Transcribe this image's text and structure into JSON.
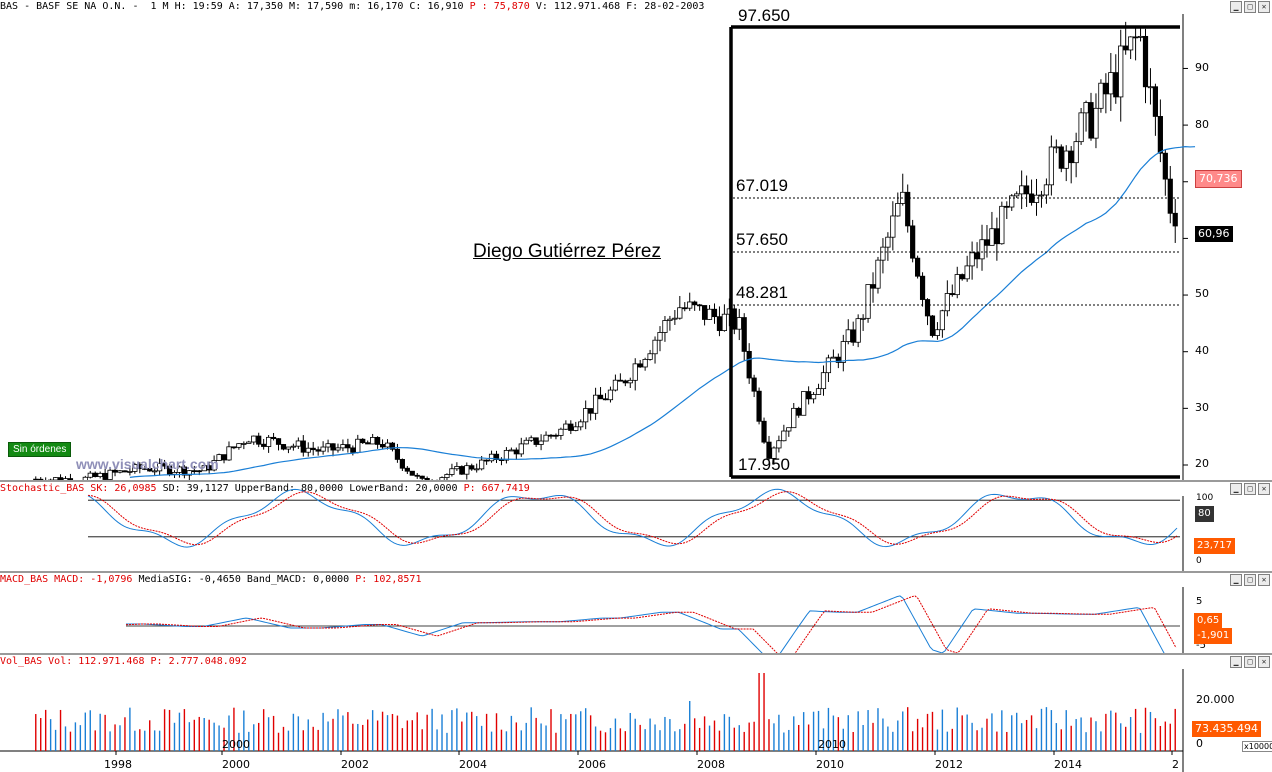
{
  "main": {
    "header": {
      "prefix": "BAS - BASF SE NA O.N. -  1 M H: 19:59 A: 17,350 M: 17,590 m: 16,170 C: 16,910 ",
      "p_label": "P : 75,870",
      "suffix": " V: 112.971.468 F: 28-02-2003"
    },
    "author": "Diego Gutiérrez Pérez",
    "watermark": "www.visualchart.com",
    "no_orders": "Sin órdenes",
    "fibo_levels": [
      {
        "label": "67.019",
        "value": 67.019
      },
      {
        "label": "57.650",
        "value": 57.65
      },
      {
        "label": "48.281",
        "value": 48.281
      }
    ],
    "box_top_label": "97.650",
    "box_bottom_label": "17.950",
    "badge_ma": "70,736",
    "badge_last": "60,96",
    "yticks": [
      "20",
      "30",
      "40",
      "50",
      "60",
      "70",
      "80",
      "90"
    ]
  },
  "stoch": {
    "name": "Stochastic_BAS SK: 26,0985 ",
    "sd": "SD: 39,1127 UpperBand: 80,0000 LowerBand: 20,0000 ",
    "p": "P: 667,7419",
    "badge_upper": "80",
    "badge_val": "23,717",
    "yticks": [
      "100",
      "0"
    ]
  },
  "macd": {
    "name": "MACD_BAS MACD: -1,0796 ",
    "rest": "MediaSIG: -0,4650 Band_MACD: 0,0000 ",
    "p": "P: 102,8571",
    "badge_sig": "0,65",
    "badge_val": "-1,901",
    "yticks": [
      "5",
      "-5"
    ]
  },
  "volume": {
    "name": "Vol_BAS Vol: 112.971.468 ",
    "p": "P: 2.777.048.092",
    "badge_val": "73.435.494",
    "multiplier": "x10000",
    "yticks": [
      "20.000",
      "0"
    ],
    "inner_years": [
      "2000",
      "2010"
    ]
  },
  "x_axis": {
    "years": [
      "1998",
      "2000",
      "2002",
      "2004",
      "2006",
      "2008",
      "2010",
      "2012",
      "2014",
      "2"
    ]
  },
  "colors": {
    "up": "#ffffff",
    "down": "#000000",
    "ma": "#1a7fd6",
    "red": "#e00000",
    "blue": "#1a7fd6",
    "badge_red": "#ff5a00"
  },
  "chart_data": {
    "type": "candlestick",
    "title": "BAS - BASF SE NA O.N.",
    "period": "1 M",
    "y_range": [
      17,
      98
    ],
    "x_range": [
      "1997-01",
      "2016-02"
    ],
    "fib_retracement": {
      "high": 97.65,
      "low": 17.95,
      "levels": [
        67.019,
        57.65,
        48.281
      ]
    },
    "approx_close_path": [
      {
        "date": "1997-06",
        "close": 17.5
      },
      {
        "date": "1998-06",
        "close": 19.5
      },
      {
        "date": "1999-06",
        "close": 19
      },
      {
        "date": "2000-03",
        "close": 25
      },
      {
        "date": "2001-06",
        "close": 22.5
      },
      {
        "date": "2002-06",
        "close": 24
      },
      {
        "date": "2003-02",
        "close": 16.9
      },
      {
        "date": "2004-03",
        "close": 20.5
      },
      {
        "date": "2005-06",
        "close": 26
      },
      {
        "date": "2006-06",
        "close": 34
      },
      {
        "date": "2007-06",
        "close": 48
      },
      {
        "date": "2008-06",
        "close": 45
      },
      {
        "date": "2008-12",
        "close": 22
      },
      {
        "date": "2009-06",
        "close": 30
      },
      {
        "date": "2010-06",
        "close": 44
      },
      {
        "date": "2011-03",
        "close": 67
      },
      {
        "date": "2011-09",
        "close": 44
      },
      {
        "date": "2012-06",
        "close": 57
      },
      {
        "date": "2013-06",
        "close": 70
      },
      {
        "date": "2014-06",
        "close": 82
      },
      {
        "date": "2015-03",
        "close": 96
      },
      {
        "date": "2015-09",
        "close": 66
      },
      {
        "date": "2016-02",
        "close": 60.96
      }
    ],
    "indicators": {
      "stochastic": {
        "SK": 26.0985,
        "SD": 39.1127,
        "upper": 80,
        "lower": 20
      },
      "macd": {
        "MACD": -1.0796,
        "signal": -0.465,
        "band": 0
      },
      "volume": {
        "last": 112971468
      }
    }
  }
}
